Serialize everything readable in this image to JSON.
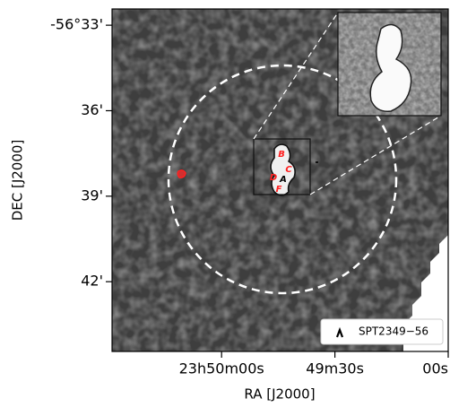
{
  "chart_data": {
    "type": "image",
    "xlabel": "RA [J2000]",
    "ylabel": "DEC [J2000]",
    "xlim": [
      3029,
      2940
    ],
    "ylim": [
      -56.7408,
      -56.5405
    ],
    "xticks": [
      {
        "value": 3000,
        "label": "23h50m00s"
      },
      {
        "value": 2970,
        "label": "49m30s"
      },
      {
        "value": 2940,
        "label": "00s"
      }
    ],
    "yticks": [
      {
        "value": -56.55,
        "label": "-56°33'"
      },
      {
        "value": -56.6,
        "label": "36'"
      },
      {
        "value": -56.65,
        "label": "39'"
      },
      {
        "value": -56.7,
        "label": "42'"
      }
    ],
    "legend": {
      "label": "SPT2349−56",
      "loc": "lower right"
    },
    "annotations": [
      {
        "text": "B",
        "color": "#ff2020"
      },
      {
        "text": "C",
        "color": "#ff2020"
      },
      {
        "text": "D",
        "color": "#ff2020"
      },
      {
        "text": "A",
        "color": "#000000"
      },
      {
        "text": "F",
        "color": "#ff2020"
      }
    ]
  }
}
